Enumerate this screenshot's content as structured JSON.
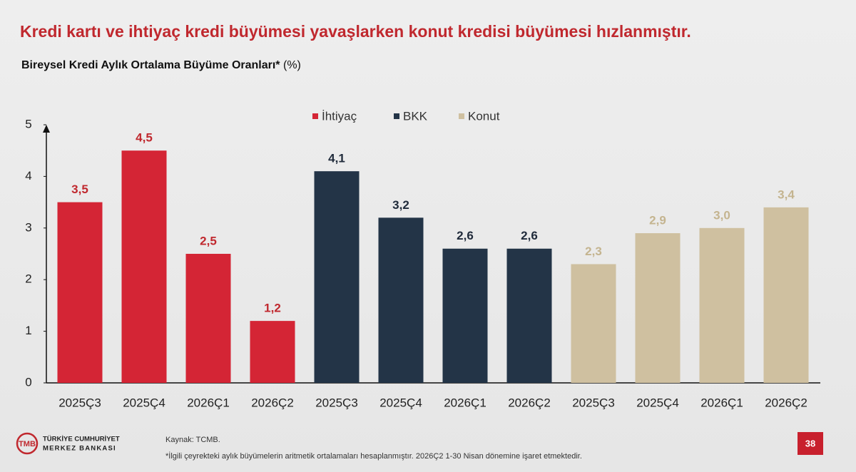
{
  "chart_data": {
    "type": "bar",
    "title": "Kredi kartı ve ihtiyaç kredi büyümesi yavaşlarken konut kredisi büyümesi hızlanmıştır.",
    "subtitle": "Bireysel Kredi Aylık Ortalama Büyüme Oranları*",
    "subtitle_unit": "(%)",
    "categories": [
      "2025Ç3",
      "2025Ç4",
      "2026Ç1",
      "2026Ç2",
      "2025Ç3",
      "2025Ç4",
      "2026Ç1",
      "2026Ç2",
      "2025Ç3",
      "2025Ç4",
      "2026Ç1",
      "2026Ç2"
    ],
    "series": [
      {
        "name": "İhtiyaç",
        "color": "#d42535",
        "label_color": "#c0282e",
        "values": [
          3.5,
          4.5,
          2.5,
          1.2,
          null,
          null,
          null,
          null,
          null,
          null,
          null,
          null
        ],
        "value_labels": [
          "3,5",
          "4,5",
          "2,5",
          "1,2",
          null,
          null,
          null,
          null,
          null,
          null,
          null,
          null
        ]
      },
      {
        "name": "BKK",
        "color": "#233447",
        "label_color": "#1f2a3a",
        "values": [
          null,
          null,
          null,
          null,
          4.1,
          3.2,
          2.6,
          2.6,
          null,
          null,
          null,
          null
        ],
        "value_labels": [
          null,
          null,
          null,
          null,
          "4,1",
          "3,2",
          "2,6",
          "2,6",
          null,
          null,
          null,
          null
        ]
      },
      {
        "name": "Konut",
        "color": "#cfc0a0",
        "label_color": "#c4b48f",
        "values": [
          null,
          null,
          null,
          null,
          null,
          null,
          null,
          null,
          2.3,
          2.9,
          3.0,
          3.4
        ],
        "value_labels": [
          null,
          null,
          null,
          null,
          null,
          null,
          null,
          null,
          "2,3",
          "2,9",
          "3,0",
          "3,4"
        ]
      }
    ],
    "ylim": [
      0,
      5
    ],
    "yticks": [
      0,
      1,
      2,
      3,
      4,
      5
    ],
    "grid": false,
    "legend": "top"
  },
  "footer": {
    "logo_line1": "TÜRKİYE CUMHURİYET",
    "logo_line2": "MERKEZ BANKASI",
    "source": "Kaynak: TCMB.",
    "note": "*İlgili çeyrekteki aylık büyümelerin aritmetik ortalamaları hesaplanmıştır. 2026Ç2 1-30 Nisan dönemine işaret etmektedir.",
    "page": "38"
  }
}
